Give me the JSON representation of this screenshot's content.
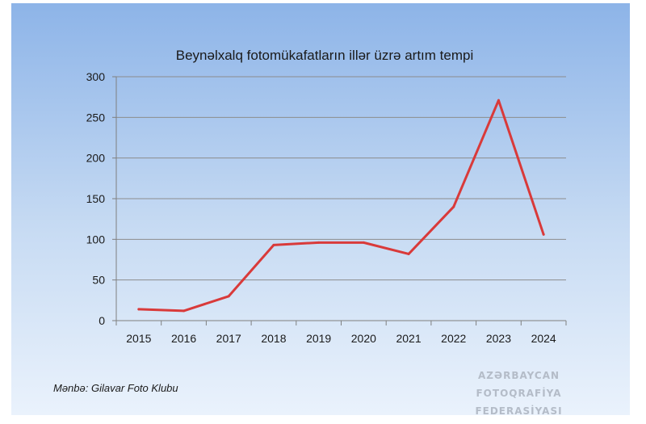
{
  "chart_data": {
    "type": "line",
    "title": "Beynəlxalq fotomükafatların illər üzrə artım tempi",
    "xlabel": "",
    "ylabel": "",
    "categories": [
      "2015",
      "2016",
      "2017",
      "2018",
      "2019",
      "2020",
      "2021",
      "2022",
      "2023",
      "2024"
    ],
    "series": [
      {
        "values": [
          14,
          12,
          30,
          93,
          96,
          96,
          82,
          140,
          271,
          106
        ]
      }
    ],
    "ylim": [
      0,
      300
    ],
    "yticks": [
      0,
      50,
      100,
      150,
      200,
      250,
      300
    ],
    "grid": true,
    "legend": "none"
  },
  "colors": {
    "line": "#d93a3a",
    "grid": "#8c8c8c",
    "axis": "#7f7f7f"
  },
  "source_note": "Mənbə: Gilavar Foto Klubu",
  "watermark": {
    "line1": "AZƏRBAYCAN FOTOQRAFİYA",
    "line2": "FEDERASİYASI"
  }
}
